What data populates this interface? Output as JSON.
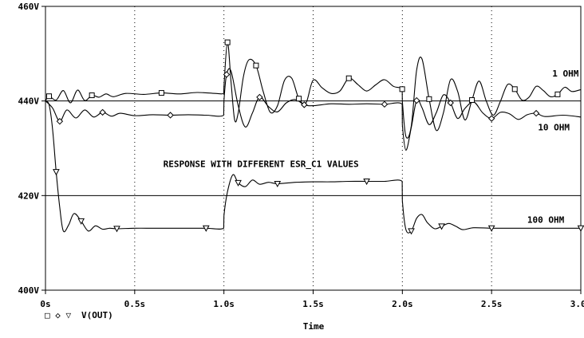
{
  "chart_data": {
    "type": "line",
    "title": "RESPONSE WITH DIFFERENT ESR_C1 VALUES",
    "xlabel": "Time",
    "ylabel": "",
    "xlim": [
      0,
      3.0
    ],
    "ylim": [
      400,
      460
    ],
    "x_ticks": [
      {
        "value": 0,
        "label": "0s"
      },
      {
        "value": 0.5,
        "label": "0.5s"
      },
      {
        "value": 1.0,
        "label": "1.0s"
      },
      {
        "value": 1.5,
        "label": "1.5s"
      },
      {
        "value": 2.0,
        "label": "2.0s"
      },
      {
        "value": 2.5,
        "label": "2.5s"
      },
      {
        "value": 3.0,
        "label": "3.0s"
      }
    ],
    "y_ticks": [
      {
        "value": 400,
        "label": "400V"
      },
      {
        "value": 420,
        "label": "420V"
      },
      {
        "value": 440,
        "label": "440V"
      },
      {
        "value": 460,
        "label": "460V"
      }
    ],
    "grid": true,
    "legend": {
      "placement": "bottom-left",
      "symbols": "□ ◇ ▽",
      "label": "V(OUT)"
    },
    "series": [
      {
        "name": "1 OHM",
        "marker": "square",
        "x": [
          0,
          0.02,
          0.06,
          0.1,
          0.14,
          0.18,
          0.22,
          0.26,
          0.3,
          0.34,
          0.38,
          0.45,
          0.55,
          0.65,
          0.75,
          0.85,
          0.95,
          0.999,
          1.0,
          1.02,
          1.04,
          1.06,
          1.08,
          1.11,
          1.14,
          1.18,
          1.22,
          1.26,
          1.3,
          1.34,
          1.38,
          1.42,
          1.46,
          1.5,
          1.55,
          1.6,
          1.65,
          1.7,
          1.75,
          1.8,
          1.85,
          1.9,
          1.95,
          1.999,
          2.0,
          2.02,
          2.05,
          2.08,
          2.11,
          2.15,
          2.19,
          2.23,
          2.27,
          2.31,
          2.35,
          2.39,
          2.43,
          2.47,
          2.51,
          2.55,
          2.59,
          2.63,
          2.67,
          2.71,
          2.75,
          2.79,
          2.83,
          2.87,
          2.91,
          2.95,
          3.0
        ],
        "y": [
          440,
          441,
          440.2,
          442.2,
          439.6,
          442.3,
          440.1,
          441.2,
          440.8,
          441.5,
          440.9,
          441.6,
          441.4,
          441.7,
          441.5,
          441.8,
          441.6,
          441.6,
          443,
          452.4,
          444,
          436,
          437.5,
          445.3,
          448.7,
          447.5,
          442,
          437.6,
          439,
          444.4,
          444.8,
          440.5,
          439.6,
          444.4,
          442.8,
          441.6,
          442.1,
          444.8,
          443.5,
          442.1,
          443.4,
          444.5,
          443.1,
          442.5,
          440,
          432.5,
          434.7,
          446.5,
          448.9,
          440.4,
          433.8,
          437.5,
          444.5,
          442,
          436,
          440.2,
          444.2,
          440,
          437,
          440,
          443.5,
          442.5,
          440.2,
          440.8,
          443.1,
          442.2,
          440.9,
          441.4,
          442.9,
          442,
          442.4
        ]
      },
      {
        "name": "10 OHM",
        "marker": "diamond",
        "x": [
          0,
          0.04,
          0.08,
          0.12,
          0.17,
          0.22,
          0.27,
          0.32,
          0.37,
          0.42,
          0.5,
          0.6,
          0.7,
          0.8,
          0.9,
          0.999,
          1.0,
          1.015,
          1.04,
          1.08,
          1.12,
          1.16,
          1.2,
          1.25,
          1.3,
          1.35,
          1.4,
          1.45,
          1.5,
          1.6,
          1.7,
          1.8,
          1.9,
          1.999,
          2.0,
          2.02,
          2.05,
          2.08,
          2.11,
          2.15,
          2.19,
          2.23,
          2.27,
          2.31,
          2.35,
          2.4,
          2.45,
          2.5,
          2.55,
          2.6,
          2.65,
          2.7,
          2.75,
          2.8,
          2.9,
          3.0
        ],
        "y": [
          440,
          438.5,
          435.7,
          438.1,
          436.4,
          438.1,
          436.6,
          437.6,
          436.8,
          437.4,
          436.9,
          437.1,
          437,
          437.1,
          437,
          437,
          440,
          445.6,
          446.3,
          439,
          434.5,
          437.5,
          440.8,
          438.8,
          437.7,
          439.6,
          440.3,
          439.2,
          439,
          439.4,
          439.3,
          439.4,
          439.3,
          439.3,
          435,
          429.6,
          434.4,
          440.1,
          438.6,
          435,
          437.5,
          441.3,
          439.6,
          436.3,
          438.4,
          439.8,
          437.5,
          436.3,
          437.6,
          437.3,
          436.1,
          437.1,
          437.4,
          436.7,
          437,
          436.6
        ]
      },
      {
        "name": "100 OHM",
        "marker": "triangle",
        "x": [
          0,
          0.02,
          0.04,
          0.06,
          0.08,
          0.1,
          0.13,
          0.16,
          0.2,
          0.24,
          0.28,
          0.32,
          0.36,
          0.4,
          0.5,
          0.6,
          0.7,
          0.8,
          0.9,
          0.999,
          1.0,
          1.02,
          1.05,
          1.08,
          1.12,
          1.16,
          1.2,
          1.25,
          1.3,
          1.4,
          1.5,
          1.6,
          1.7,
          1.8,
          1.9,
          1.999,
          2.0,
          2.02,
          2.05,
          2.08,
          2.11,
          2.14,
          2.18,
          2.22,
          2.26,
          2.3,
          2.34,
          2.4,
          2.5,
          2.6,
          2.7,
          2.8,
          2.9,
          3.0
        ],
        "y": [
          440,
          439.2,
          434,
          425,
          417.5,
          412.5,
          413.8,
          416.2,
          414.6,
          412.5,
          413.6,
          412.9,
          413.1,
          413,
          413.1,
          413.1,
          413.1,
          413.1,
          413.1,
          413.1,
          415.7,
          420.8,
          424.4,
          422.7,
          421.9,
          423.3,
          422.4,
          422.8,
          422.5,
          422.8,
          422.9,
          422.9,
          423,
          423,
          423,
          423,
          419,
          412.8,
          412.5,
          415.2,
          416,
          414.3,
          413,
          413.5,
          414.1,
          413.5,
          412.8,
          413.2,
          413.1,
          413.1,
          413.1,
          413.1,
          413.1,
          413.1
        ]
      }
    ],
    "annotations": [
      {
        "text": "1 OHM",
        "x": 2.84,
        "y": 445.2
      },
      {
        "text": "10 OHM",
        "x": 2.76,
        "y": 433.8
      },
      {
        "text": "100 OHM",
        "x": 2.7,
        "y": 414.2
      },
      {
        "text": "RESPONSE WITH DIFFERENT ESR_C1 VALUES",
        "x": 0.66,
        "y": 426
      }
    ],
    "reference_lines": [
      440,
      420
    ]
  }
}
